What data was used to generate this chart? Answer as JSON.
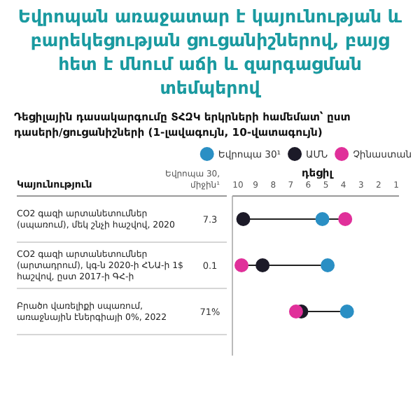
{
  "chart_data": {
    "type": "scatter",
    "title": "Եվրոպան առաջատար է կայունության և բարեկեցության ցուցանիշներով, բայց հետ է մնում աճի և զարգացման տեմպերով",
    "subtitle": "Դեցիլային դասակարգումը ՏՀԶԿ երկրների համեմատ՝ ըստ դասերի/ցուցանիշների (1-լավագույն, 10-վատագույն)",
    "ylabel": "Կայունություն",
    "xlabel": "դեցիլ",
    "orientation": "horizontal",
    "categories": [
      "CO2 գազի արտանետումներ (սպառում), մեկ շնչի հաշվով, 2020",
      "CO2 գազի արտանետումներ (արտադրում), կգ-ն 2020-ի ՀՆԱ-ի 1$ հաշվով, ըստ 2017-ի ԳՀ-ի",
      "Բրածո վառելիքի սպառում, առաջնային էներգիայի 0%, 2022"
    ],
    "series": [
      {
        "name": "Եվրոպա 30¹",
        "color": "#2a8fc4",
        "values": [
          5.2,
          4.9,
          3.8
        ]
      },
      {
        "name": "ԱՄՆ",
        "color": "#1c1a28",
        "values": [
          9.7,
          8.6,
          6.4
        ]
      },
      {
        "name": "Չինաստան",
        "color": "#e0309a",
        "values": [
          3.9,
          9.8,
          6.7
        ]
      }
    ],
    "annotations": [
      "Եվրոպա 30, միջին¹",
      "7.3",
      "0.1",
      "71%"
    ],
    "xlim": [
      10,
      1
    ],
    "xticks": [
      10,
      9,
      8,
      7,
      6,
      5,
      4,
      3,
      2,
      1
    ],
    "legend": "top",
    "marker": "circle"
  }
}
